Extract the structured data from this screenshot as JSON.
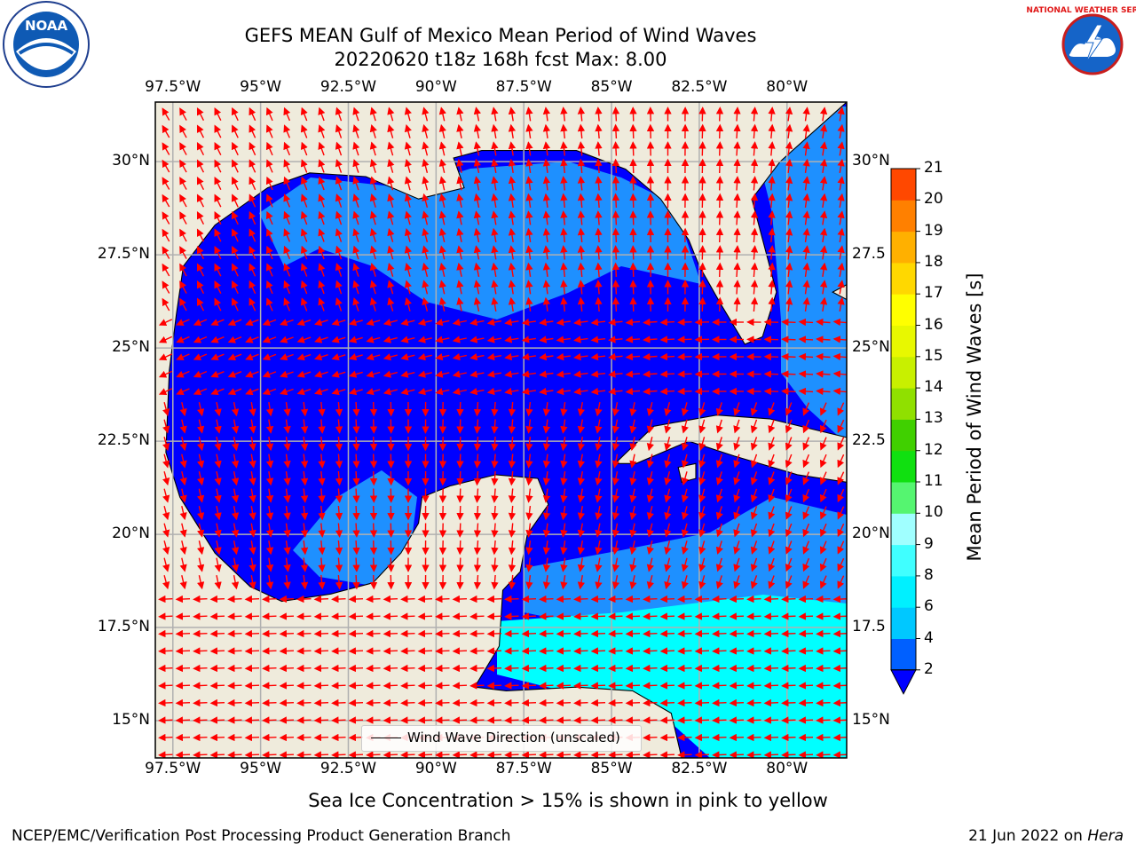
{
  "title": {
    "line1": "GEFS MEAN Gulf of Mexico Mean Period of Wind Waves",
    "line2": "20220620 t18z 168h fcst   Max: 8.00"
  },
  "map": {
    "lon_labels": [
      "97.5°W",
      "95°W",
      "92.5°W",
      "90°W",
      "87.5°W",
      "85°W",
      "82.5°W",
      "80°W"
    ],
    "lat_labels_left": [
      "30°N",
      "27.5°N",
      "25°N",
      "22.5°N",
      "20°N",
      "17.5°N",
      "15°N"
    ],
    "lat_labels_right": [
      "30°N",
      "27.5",
      "25°N",
      "22.5",
      "20°N",
      "17.5",
      "15°N"
    ],
    "lon_range": [
      -98,
      -78.3
    ],
    "lat_range": [
      14,
      31.6
    ],
    "colors": {
      "land": "#efebdc",
      "band_2_4": "#0000ff",
      "band_4_6": "#1e90ff",
      "band_6_8": "#00ffff",
      "arrows": "#ff0000",
      "grid": "#b0b0b0"
    }
  },
  "legend": {
    "label": "Wind Wave Direction (unscaled)"
  },
  "colorbar": {
    "label": "Mean Period of Wind Waves [s]",
    "ticks": [
      "2",
      "4",
      "6",
      "8",
      "9",
      "10",
      "11",
      "12",
      "13",
      "14",
      "15",
      "16",
      "17",
      "18",
      "19",
      "20",
      "21"
    ],
    "colors": [
      "#0060ff",
      "#00c8ff",
      "#00f0ff",
      "#40ffff",
      "#a0ffff",
      "#55f570",
      "#10e010",
      "#40d000",
      "#90e000",
      "#c8f000",
      "#e8f800",
      "#ffff00",
      "#ffd800",
      "#ffb000",
      "#ff8000",
      "#ff4800",
      "#ff2000",
      "#ff0000"
    ],
    "extend_color": "#0000ff"
  },
  "note": "Sea Ice Concentration > 15% is shown in pink to yellow",
  "footer": {
    "left": "NCEP/EMC/Verification Post Processing Product Generation Branch",
    "right_date": "21 Jun 2022 on ",
    "right_machine": "Hera"
  },
  "logos": {
    "left": "NOAA",
    "right": "NATIONAL WEATHER SERVICE"
  }
}
